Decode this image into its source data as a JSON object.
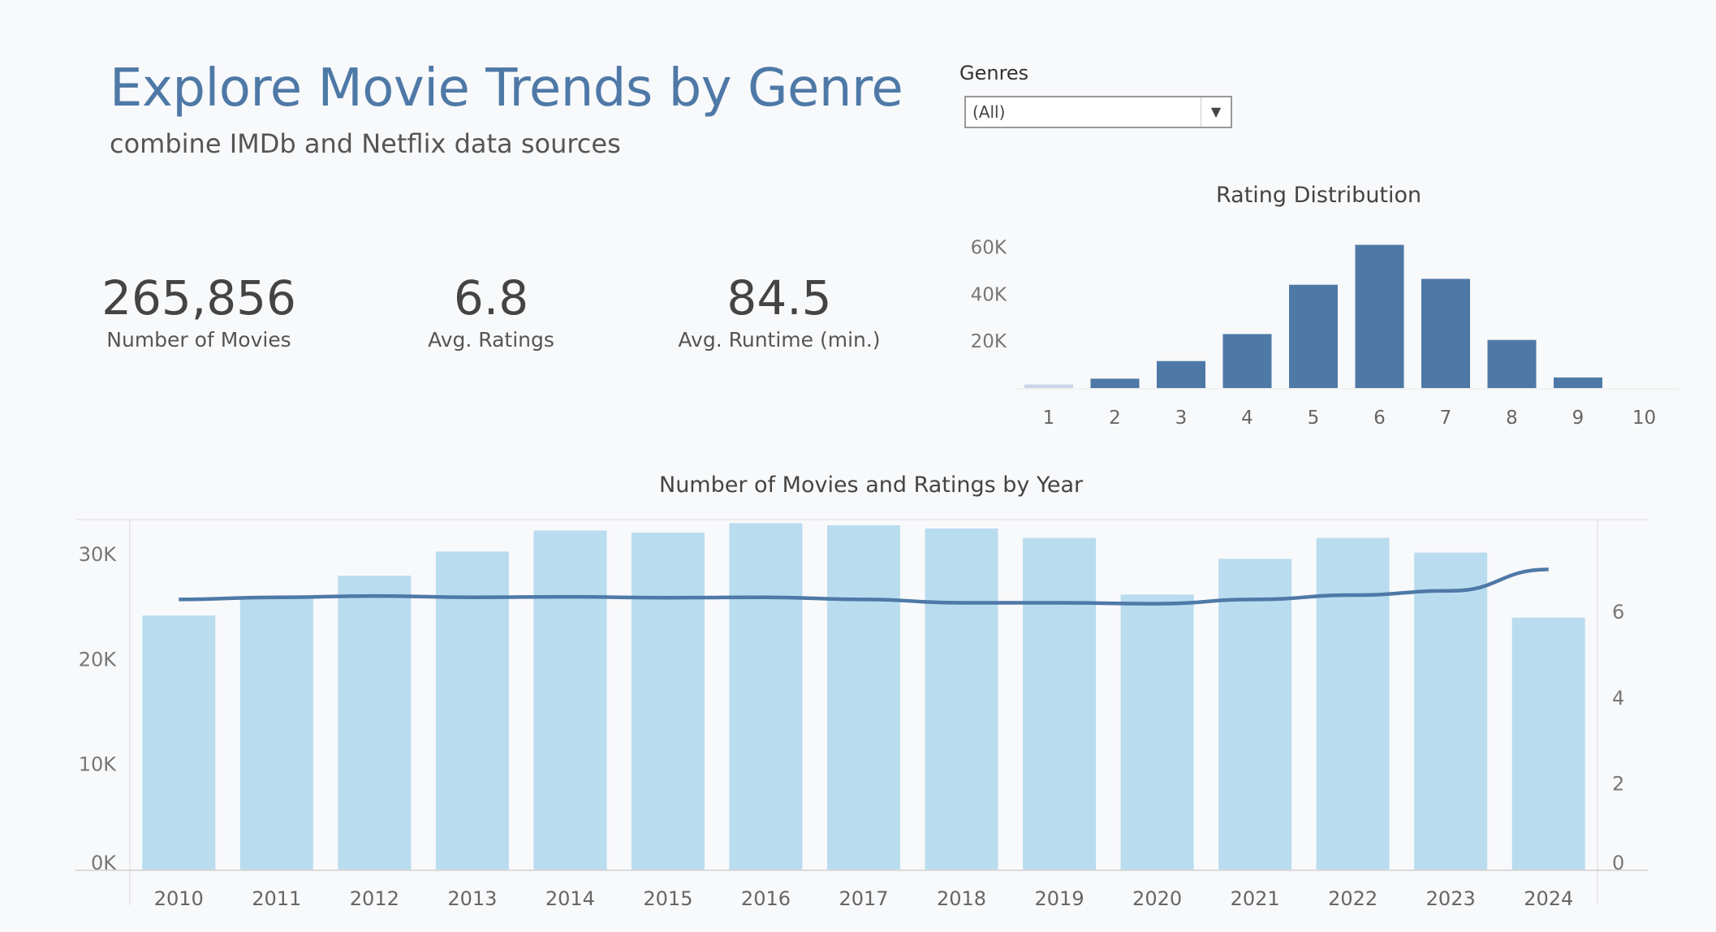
{
  "header": {
    "title": "Explore Movie Trends by Genre",
    "subtitle": "combine IMDb and Netflix data sources"
  },
  "filter": {
    "label": "Genres",
    "value": "(All)"
  },
  "kpis": [
    {
      "value": "265,856",
      "label": "Number of Movies"
    },
    {
      "value": "6.8",
      "label": "Avg. Ratings"
    },
    {
      "value": "84.5",
      "label": "Avg. Runtime (min.)"
    }
  ],
  "colors": {
    "title": "#4e79a7",
    "dark_bar": "#4e79a7",
    "light_bar": "#b9dcef",
    "line": "#4e79a7"
  },
  "chart_data": [
    {
      "type": "bar",
      "title": "Rating Distribution",
      "categories": [
        "1",
        "2",
        "3",
        "4",
        "5",
        "6",
        "7",
        "8",
        "9",
        "10"
      ],
      "values": [
        1500,
        4000,
        11500,
        23000,
        44000,
        61000,
        46500,
        20500,
        4500,
        0
      ],
      "ytick_labels": [
        "20K",
        "40K",
        "60K"
      ],
      "ylim": [
        0,
        65000
      ],
      "grid": false
    },
    {
      "type": "bar+line",
      "title": "Number of Movies and Ratings by Year",
      "categories": [
        "2010",
        "2011",
        "2012",
        "2013",
        "2014",
        "2015",
        "2016",
        "2017",
        "2018",
        "2019",
        "2020",
        "2021",
        "2022",
        "2023",
        "2024"
      ],
      "series": [
        {
          "values": [
            24200,
            26000,
            28000,
            30300,
            32300,
            32100,
            33000,
            32800,
            32500,
            31600,
            26200,
            29600,
            31600,
            30200,
            24000
          ],
          "axis": "left",
          "mark": "bar"
        },
        {
          "values": [
            6.3,
            6.35,
            6.38,
            6.35,
            6.36,
            6.34,
            6.35,
            6.3,
            6.22,
            6.22,
            6.2,
            6.3,
            6.4,
            6.5,
            7.0
          ],
          "axis": "right",
          "mark": "line"
        }
      ],
      "y_left_ticks": [
        "0K",
        "10K",
        "20K",
        "30K"
      ],
      "y_right_ticks": [
        "0",
        "2",
        "4",
        "6"
      ],
      "ylim_left": [
        0,
        33500
      ],
      "ylim_right": [
        0,
        8.2
      ]
    }
  ]
}
